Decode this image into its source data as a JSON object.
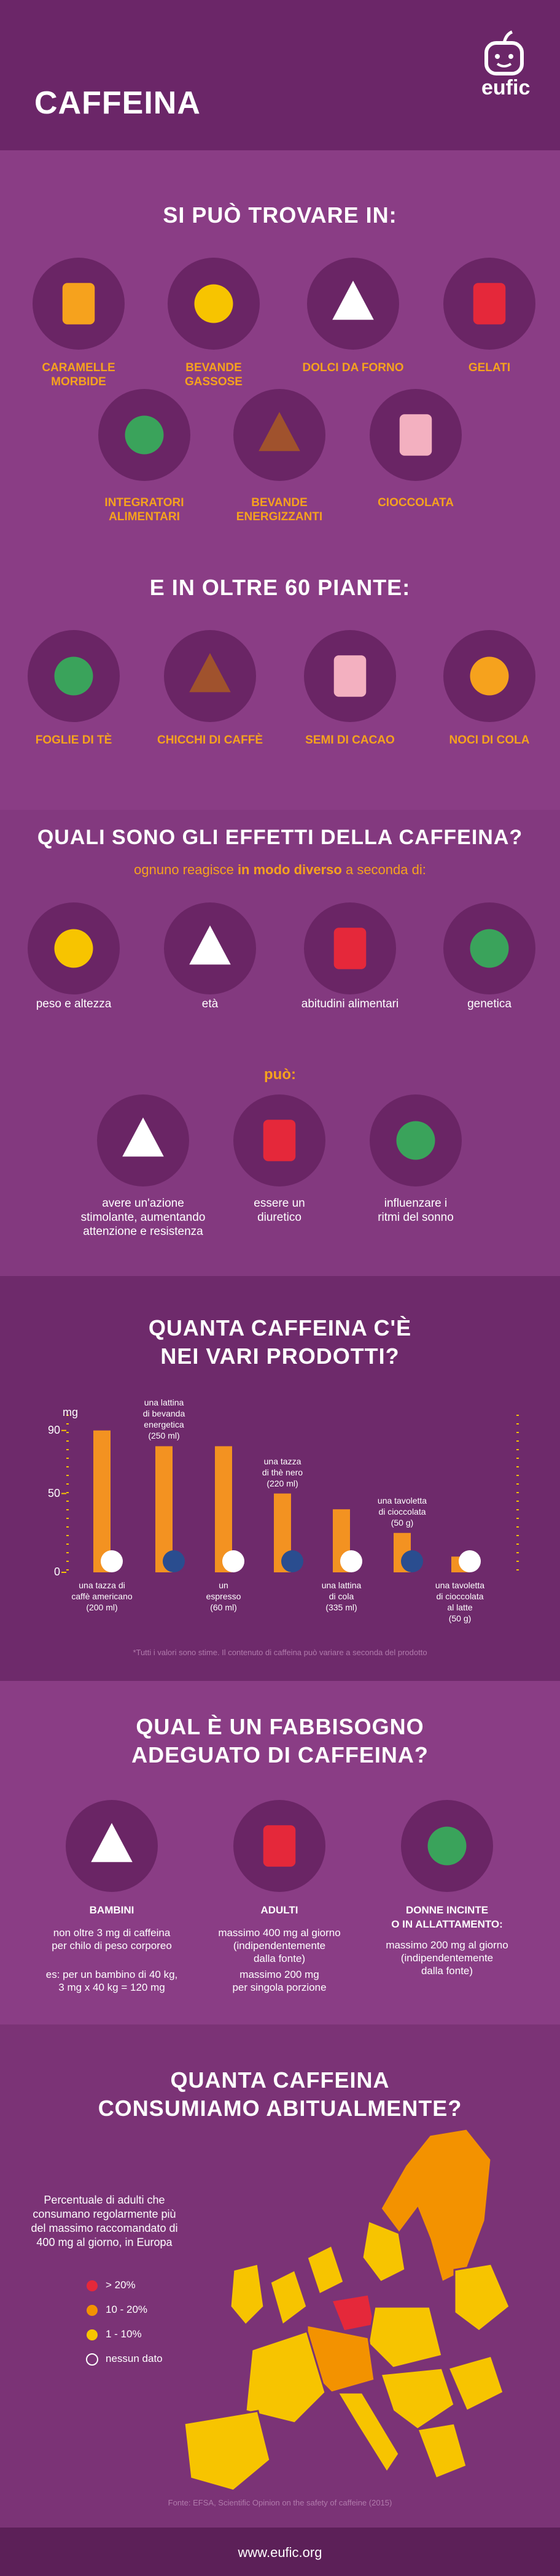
{
  "header": {
    "title": "CAFFEINA",
    "logo": "eufic"
  },
  "sources": {
    "title": "SI PUÒ TROVARE IN:",
    "items": [
      "CARAMELLE\nMORBIDE",
      "BEVANDE\nGASSOSE",
      "DOLCI DA FORNO",
      "GELATI",
      "INTEGRATORI\nALIMENTARI",
      "BEVANDE\nENERGIZZANTI",
      "CIOCCOLATA"
    ]
  },
  "plants": {
    "title": "E IN OLTRE 60 PIANTE:",
    "items": [
      "FOGLIE DI TÈ",
      "CHICCHI DI CAFFÈ",
      "SEMI DI CACAO",
      "NOCI DI COLA"
    ]
  },
  "effects": {
    "title": "QUALI SONO GLI EFFETTI DELLA CAFFEINA?",
    "subtitle_start": "ognuno reagisce ",
    "subtitle_bold": "in modo diverso",
    "subtitle_end": " a seconda di:",
    "factors": [
      "peso e altezza",
      "età",
      "abitudini alimentari",
      "genetica"
    ],
    "can_label": "può:",
    "can": [
      "avere un'azione\nstimolante, aumentando\nattenzione e resistenza",
      "essere un\ndiuretico",
      "influenzare i\nritmi del sonno"
    ]
  },
  "chart_data": {
    "type": "bar",
    "title": "QUANTA CAFFEINA C'È\nNEI VARI PRODOTTI?",
    "y_label": "mg",
    "categories": [
      "una tazza di\ncaffè americano\n(200 ml)",
      "una lattina\ndi bevanda\nenergetica\n(250 ml)",
      "un\nespresso\n(60 ml)",
      "una tazza\ndi thè nero\n(220 ml)",
      "una lattina\ndi cola\n(335 ml)",
      "una tavoletta\ndi cioccolata\n(50 g)",
      "una tavoletta\ndi cioccolata\nal latte\n(50 g)"
    ],
    "values": [
      90,
      80,
      80,
      50,
      40,
      25,
      10
    ],
    "color": "#f39221",
    "ylim": [
      0,
      100
    ],
    "yticks": [
      0,
      50,
      90
    ],
    "note": "*Tutti i valori sono stime. Il contenuto di caffeina può variare a seconda del prodotto"
  },
  "needs": {
    "title": "QUAL È UN FABBISOGNO\nADEGUATO DI CAFFEINA?",
    "groups": [
      {
        "name": "BAMBINI",
        "text": "non oltre 3 mg di caffeina\nper chilo di peso corporeo",
        "example": "es: per un bambino di 40 kg,\n3 mg x 40 kg = 120 mg"
      },
      {
        "name": "ADULTI",
        "text": "massimo 400 mg al giorno\n(indipendentemente\ndalla fonte)",
        "example": "massimo 200 mg\nper singola porzione"
      },
      {
        "name": "DONNE INCINTE\nO IN ALLATTAMENTO:",
        "text": "massimo 200 mg al giorno\n(indipendentemente\ndalla fonte)"
      }
    ]
  },
  "consumption": {
    "title": "QUANTA CAFFEINA\nCONSUMIAMO ABITUALMENTE?",
    "description": "Percentuale di adulti che\nconsumano regolarmente più\ndel massimo raccomandato di\n400 mg al giorno, in Europa",
    "legend": [
      {
        "label": "> 20%",
        "color": "#e5283a"
      },
      {
        "label": "10 - 20%",
        "color": "#f39200"
      },
      {
        "label": "1 - 10%",
        "color": "#f7c400"
      },
      {
        "label": "nessun dato",
        "color": "none"
      }
    ],
    "source": "Fonte: EFSA, Scientific Opinion on the safety of caffeine (2015)"
  },
  "footer": {
    "url": "www.eufic.org"
  }
}
